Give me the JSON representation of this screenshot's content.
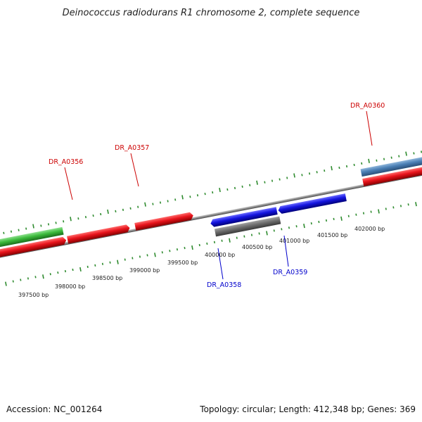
{
  "title": "Deinococcus radiodurans R1 chromosome 2, complete sequence",
  "accession": "Accession: NC_001264",
  "topology": "Topology: circular; Length: 412,348 bp; Genes: 369",
  "colors": {
    "forward_cds": "#e8141c",
    "reverse_cds": "#1414e0",
    "rna": "#3cbb3c",
    "pseudo": "#6e6e6e",
    "highlight": "#4a7fb5",
    "backbone": "#8a8a8a",
    "ticks": "#2e8b2e",
    "label_forward": "#cc0000",
    "label_reverse": "#0000cc"
  },
  "ruler": {
    "tick_labels": [
      {
        "id": "t397500",
        "text": "397500 bp"
      },
      {
        "id": "t398000",
        "text": "398000 bp"
      },
      {
        "id": "t398500",
        "text": "398500 bp"
      },
      {
        "id": "t399000",
        "text": "399000 bp"
      },
      {
        "id": "t399500",
        "text": "399500 bp"
      },
      {
        "id": "t400000",
        "text": "400000 bp"
      },
      {
        "id": "t400500",
        "text": "400500 bp"
      },
      {
        "id": "t401000",
        "text": "401000 bp"
      },
      {
        "id": "t401500",
        "text": "401500 bp"
      },
      {
        "id": "t402000",
        "text": "402000 bp"
      }
    ]
  },
  "genes": [
    {
      "id": "g0356",
      "label": "DR_A0356",
      "strand": "forward"
    },
    {
      "id": "g0357",
      "label": "DR_A0357",
      "strand": "forward"
    },
    {
      "id": "g0360",
      "label": "DR_A0360",
      "strand": "forward"
    },
    {
      "id": "g0358",
      "label": "DR_A0358",
      "strand": "reverse"
    },
    {
      "id": "g0359",
      "label": "DR_A0359",
      "strand": "reverse"
    }
  ]
}
